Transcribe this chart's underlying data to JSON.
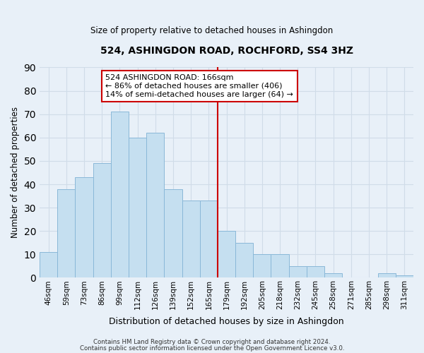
{
  "title": "524, ASHINGDON ROAD, ROCHFORD, SS4 3HZ",
  "subtitle": "Size of property relative to detached houses in Ashingdon",
  "xlabel": "Distribution of detached houses by size in Ashingdon",
  "ylabel": "Number of detached properties",
  "bar_labels": [
    "46sqm",
    "59sqm",
    "73sqm",
    "86sqm",
    "99sqm",
    "112sqm",
    "126sqm",
    "139sqm",
    "152sqm",
    "165sqm",
    "179sqm",
    "192sqm",
    "205sqm",
    "218sqm",
    "232sqm",
    "245sqm",
    "258sqm",
    "271sqm",
    "285sqm",
    "298sqm",
    "311sqm"
  ],
  "bar_values": [
    11,
    38,
    43,
    49,
    71,
    60,
    62,
    38,
    33,
    33,
    20,
    15,
    10,
    10,
    5,
    5,
    2,
    0,
    0,
    2,
    1
  ],
  "bar_color": "#c5dff0",
  "bar_edge_color": "#8ab8d8",
  "bg_color": "#e8f0f8",
  "grid_color": "#d0dce8",
  "annotation_title": "524 ASHINGDON ROAD: 166sqm",
  "annotation_line1": "← 86% of detached houses are smaller (406)",
  "annotation_line2": "14% of semi-detached houses are larger (64) →",
  "vline_x_index": 9.5,
  "vline_color": "#cc0000",
  "ylim": [
    0,
    90
  ],
  "yticks": [
    0,
    10,
    20,
    30,
    40,
    50,
    60,
    70,
    80,
    90
  ],
  "footer_line1": "Contains HM Land Registry data © Crown copyright and database right 2024.",
  "footer_line2": "Contains public sector information licensed under the Open Government Licence v3.0."
}
